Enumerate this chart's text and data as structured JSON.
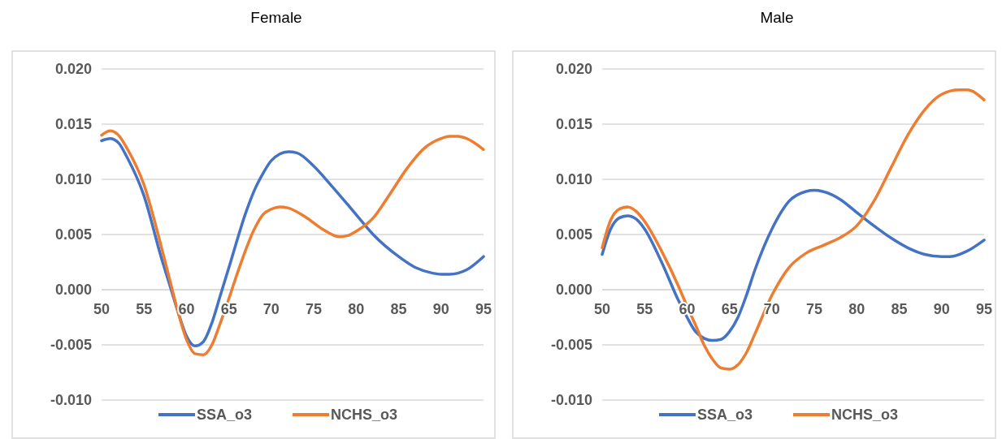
{
  "chart_data": [
    {
      "type": "line",
      "title": "Female",
      "xlim": [
        50,
        95
      ],
      "xticks": [
        50,
        55,
        60,
        65,
        70,
        75,
        80,
        85,
        90,
        95
      ],
      "ylim": [
        -0.01,
        0.02
      ],
      "yticks": [
        {
          "value": -0.01,
          "label": "-0.010"
        },
        {
          "value": -0.005,
          "label": "-0.005"
        },
        {
          "value": 0,
          "label": "0.000"
        },
        {
          "value": 0.005,
          "label": "0.005"
        },
        {
          "value": 0.01,
          "label": "0.010"
        },
        {
          "value": 0.015,
          "label": "0.015"
        },
        {
          "value": 0.02,
          "label": "0.020"
        }
      ],
      "grid": "y",
      "legend": "bottom",
      "marker": "none",
      "line_style": "solid",
      "series": [
        {
          "name": "SSA_o3",
          "color": "#4472c4",
          "x": [
            50,
            51,
            52,
            53,
            55,
            57,
            58,
            59,
            60,
            61,
            62,
            63,
            64,
            65,
            67,
            68,
            69,
            70,
            72,
            73,
            75,
            77,
            80,
            82,
            85,
            87,
            89,
            90,
            91,
            93,
            95
          ],
          "values": [
            0.0135,
            0.0137,
            0.0133,
            0.012,
            0.0085,
            0.003,
            0.0005,
            -0.002,
            -0.0042,
            -0.0051,
            -0.0047,
            -0.003,
            -0.0005,
            0.002,
            0.007,
            0.009,
            0.0105,
            0.0117,
            0.0125,
            0.0124,
            0.0112,
            0.0095,
            0.0068,
            0.005,
            0.003,
            0.002,
            0.0015,
            0.0014,
            0.0014,
            0.0018,
            0.003
          ]
        },
        {
          "name": "NCHS_o3",
          "color": "#ed7d31",
          "x": [
            50,
            51,
            52,
            53,
            55,
            57,
            58,
            59,
            60,
            61,
            62,
            63,
            64,
            65,
            66,
            68,
            69,
            70,
            71,
            72,
            74,
            76,
            78,
            79,
            80,
            82,
            84,
            86,
            88,
            90,
            91,
            92,
            93,
            95
          ],
          "values": [
            0.014,
            0.0144,
            0.014,
            0.0128,
            0.0095,
            0.004,
            0.001,
            -0.002,
            -0.0045,
            -0.0058,
            -0.0059,
            -0.005,
            -0.003,
            -0.0008,
            0.0015,
            0.0055,
            0.0068,
            0.0073,
            0.0075,
            0.0074,
            0.0066,
            0.0055,
            0.0048,
            0.0049,
            0.0053,
            0.0065,
            0.0087,
            0.011,
            0.0128,
            0.0137,
            0.0139,
            0.0139,
            0.0137,
            0.0127
          ]
        }
      ]
    },
    {
      "type": "line",
      "title": "Male",
      "xlim": [
        50,
        95
      ],
      "xticks": [
        50,
        55,
        60,
        65,
        70,
        75,
        80,
        85,
        90,
        95
      ],
      "ylim": [
        -0.01,
        0.02
      ],
      "yticks": [
        {
          "value": -0.01,
          "label": "-0.010"
        },
        {
          "value": -0.005,
          "label": "-0.005"
        },
        {
          "value": 0,
          "label": "0.000"
        },
        {
          "value": 0.005,
          "label": "0.005"
        },
        {
          "value": 0.01,
          "label": "0.010"
        },
        {
          "value": 0.015,
          "label": "0.015"
        },
        {
          "value": 0.02,
          "label": "0.020"
        }
      ],
      "grid": "y",
      "legend": "bottom",
      "marker": "none",
      "line_style": "solid",
      "series": [
        {
          "name": "SSA_o3",
          "color": "#4472c4",
          "x": [
            50,
            51,
            52,
            53,
            54,
            55,
            57,
            59,
            60,
            61,
            62,
            63,
            64,
            65,
            66,
            67,
            68,
            70,
            72,
            74,
            75,
            76,
            78,
            80,
            82,
            84,
            86,
            88,
            90,
            91,
            93,
            95
          ],
          "values": [
            0.0032,
            0.0055,
            0.0065,
            0.0067,
            0.0064,
            0.0055,
            0.0025,
            -0.001,
            -0.0025,
            -0.0038,
            -0.0044,
            -0.0046,
            -0.0045,
            -0.0038,
            -0.0025,
            -0.0005,
            0.0018,
            0.0055,
            0.008,
            0.0089,
            0.009,
            0.0089,
            0.0082,
            0.007,
            0.0058,
            0.0047,
            0.0038,
            0.0032,
            0.003,
            0.003,
            0.0035,
            0.0045
          ]
        },
        {
          "name": "NCHS_o3",
          "color": "#ed7d31",
          "x": [
            50,
            51,
            52,
            53,
            54,
            55,
            57,
            59,
            60,
            61,
            62,
            63,
            64,
            65,
            66,
            67,
            68,
            70,
            72,
            74,
            76,
            78,
            80,
            82,
            84,
            86,
            88,
            90,
            92,
            93,
            95
          ],
          "values": [
            0.0038,
            0.0063,
            0.0073,
            0.0075,
            0.0071,
            0.0062,
            0.0035,
            0.0003,
            -0.0015,
            -0.0032,
            -0.005,
            -0.0063,
            -0.0071,
            -0.0072,
            -0.0068,
            -0.0057,
            -0.004,
            -0.0005,
            0.002,
            0.0033,
            0.004,
            0.0047,
            0.0058,
            0.008,
            0.011,
            0.014,
            0.0163,
            0.0177,
            0.0181,
            0.0181,
            0.0172
          ]
        }
      ]
    }
  ]
}
